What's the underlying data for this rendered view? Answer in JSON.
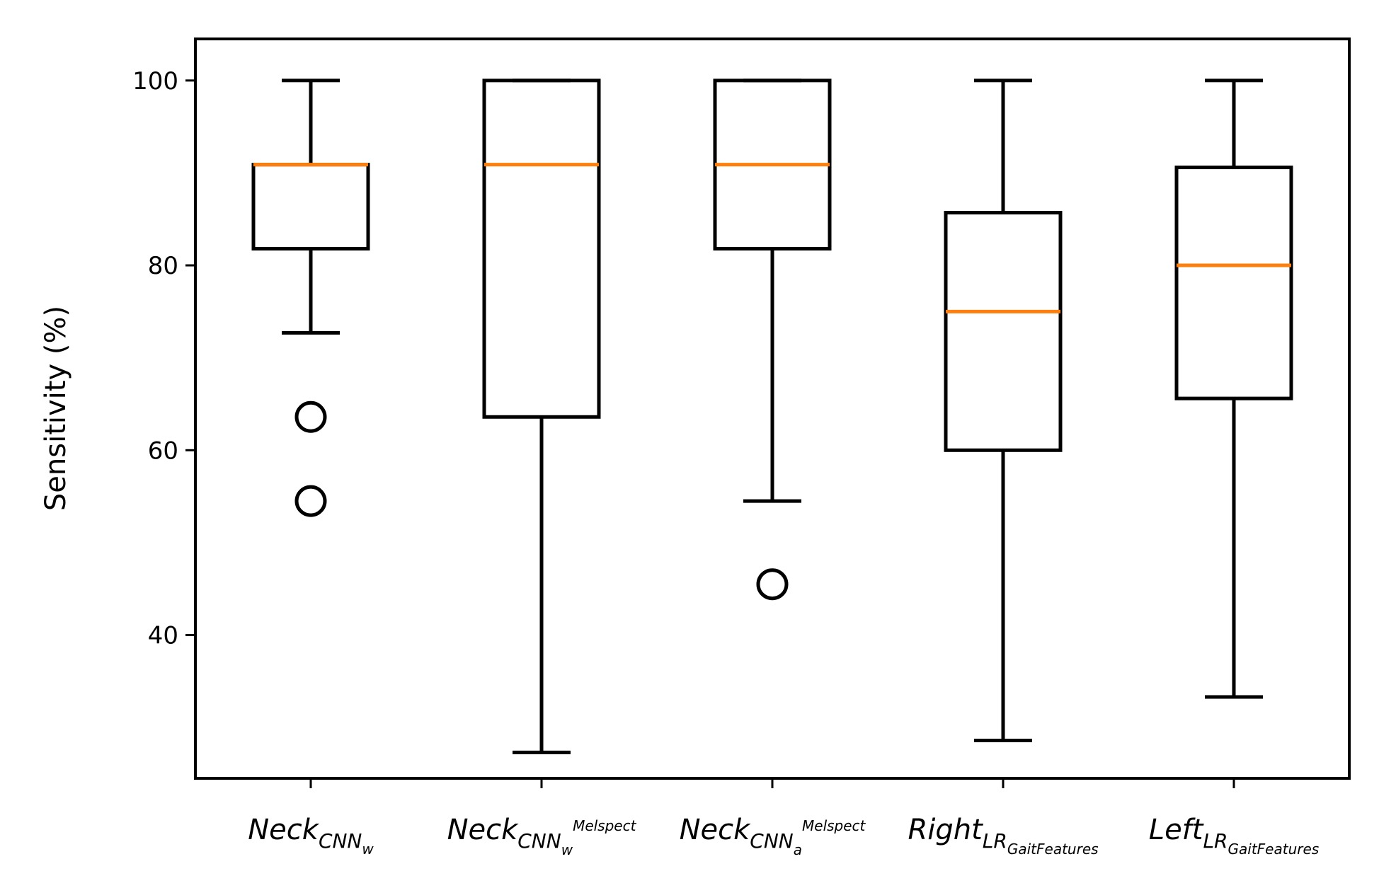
{
  "chart_data": {
    "type": "boxplot",
    "ylabel": "Sensitivity (%)",
    "xlabel": "",
    "title": "",
    "ylim": [
      24.5,
      104.5
    ],
    "yticks": [
      40,
      60,
      80,
      100
    ],
    "grid": false,
    "colors": {
      "box": "#000000",
      "median": "#ff7f0e",
      "flier": "#000000"
    },
    "categories": [
      {
        "base": "Neck",
        "sub": "CNN",
        "subsub": "w",
        "sup": ""
      },
      {
        "base": "Neck",
        "sub": "CNN",
        "subsub": "w",
        "sup": "Melspect"
      },
      {
        "base": "Neck",
        "sub": "CNN",
        "subsub": "a",
        "sup": "Melspect"
      },
      {
        "base": "Right",
        "sub": "LR",
        "subsub": "GaitFeatures",
        "sup": ""
      },
      {
        "base": "Left",
        "sub": "LR",
        "subsub": "GaitFeatures",
        "sup": ""
      }
    ],
    "boxes": [
      {
        "whisker_low": 72.7,
        "q1": 81.8,
        "median": 90.9,
        "q3": 90.9,
        "whisker_high": 100,
        "outliers": [
          63.6,
          54.5
        ]
      },
      {
        "whisker_low": 27.3,
        "q1": 63.6,
        "median": 90.9,
        "q3": 100,
        "whisker_high": 100,
        "outliers": []
      },
      {
        "whisker_low": 54.5,
        "q1": 81.8,
        "median": 90.9,
        "q3": 100,
        "whisker_high": 100,
        "outliers": [
          45.5
        ]
      },
      {
        "whisker_low": 28.6,
        "q1": 60.0,
        "median": 75.0,
        "q3": 85.7,
        "whisker_high": 100,
        "outliers": []
      },
      {
        "whisker_low": 33.3,
        "q1": 65.6,
        "median": 80.0,
        "q3": 90.6,
        "whisker_high": 100,
        "outliers": []
      }
    ]
  }
}
